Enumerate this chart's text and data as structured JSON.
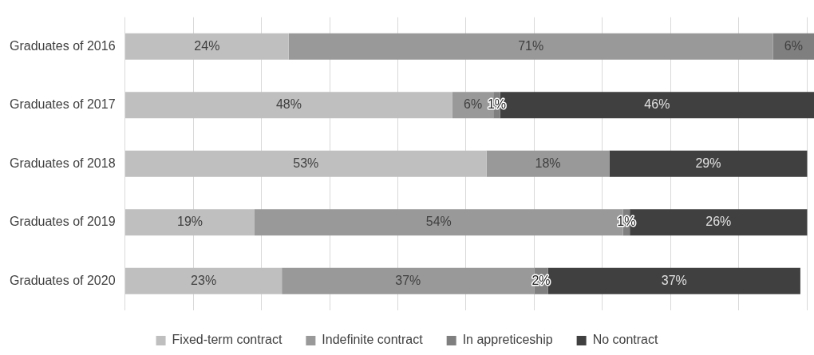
{
  "chart_data": {
    "type": "bar",
    "orientation": "horizontal",
    "stacked": true,
    "categories": [
      "Graduates of 2016",
      "Graduates of 2017",
      "Graduates of 2018",
      "Graduates of 2019",
      "Graduates of 2020"
    ],
    "series": [
      {
        "name": "Fixed-term contract",
        "color": "#bfbfbf",
        "values": [
          24,
          48,
          53,
          19,
          23
        ],
        "value_labels": [
          "24%",
          "48%",
          "53%",
          "19%",
          "23%"
        ]
      },
      {
        "name": "Indefinite contract",
        "color": "#999999",
        "values": [
          71,
          6,
          18,
          54,
          37
        ],
        "value_labels": [
          "71%",
          "6%",
          "18%",
          "54%",
          "37%"
        ]
      },
      {
        "name": "In appreticeship",
        "color": "#7f7f7f",
        "values": [
          6,
          1,
          null,
          1,
          2
        ],
        "value_labels": [
          "6%",
          "1%",
          null,
          "1%",
          "2%"
        ]
      },
      {
        "name": "No contract",
        "color": "#404040",
        "values": [
          null,
          46,
          29,
          26,
          37
        ],
        "value_labels": [
          null,
          "46%",
          "29%",
          "26%",
          "37%"
        ]
      }
    ],
    "xlim": [
      0,
      101
    ],
    "xticks": [
      {
        "value": 0,
        "label": null
      },
      {
        "value": 10,
        "label": null
      },
      {
        "value": 20,
        "label": null
      },
      {
        "value": 30,
        "label": null
      },
      {
        "value": 40,
        "label": null
      },
      {
        "value": 50,
        "label": null
      },
      {
        "value": 60,
        "label": null
      },
      {
        "value": 70,
        "label": null
      },
      {
        "value": 80,
        "label": null
      },
      {
        "value": 90,
        "label": null
      },
      {
        "value": 100,
        "label": null
      }
    ],
    "tick_labels": "y",
    "grid": "x",
    "legend": "bottom"
  }
}
